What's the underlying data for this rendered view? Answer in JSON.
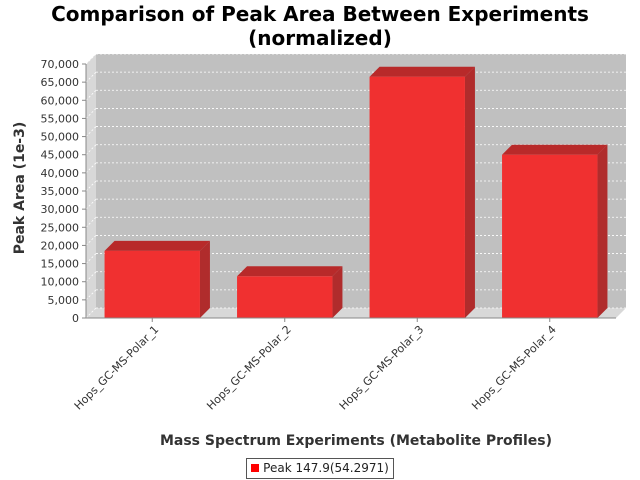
{
  "chart_data": {
    "type": "bar",
    "title_line1": "Comparison of Peak Area Between Experiments",
    "title_line2": "(normalized)",
    "xlabel": "Mass Spectrum Experiments (Metabolite Profiles)",
    "ylabel": "Peak Area (1e-3)",
    "categories": [
      "Hops_GC-MS-Polar_1",
      "Hops_GC-MS-Polar_2",
      "Hops_GC-MS-Polar_3",
      "Hops_GC-MS-Polar_4"
    ],
    "series": [
      {
        "name": "Peak 147.9(54.2971)",
        "values": [
          18500,
          11500,
          66500,
          45000
        ]
      }
    ],
    "yticks": [
      "0",
      "5,000",
      "10,000",
      "15,000",
      "20,000",
      "25,000",
      "30,000",
      "35,000",
      "40,000",
      "45,000",
      "50,000",
      "55,000",
      "60,000",
      "65,000",
      "70,000"
    ],
    "ylim": [
      0,
      70000
    ],
    "grid": true,
    "legend_position": "bottom",
    "colors": {
      "bar_front": "#f03030",
      "bar_top": "#b82a2a",
      "bar_side": "#b02c2c",
      "plot_bg": "#c0c0c0",
      "wall_side": "#d8d8d8",
      "legend_swatch": "#ff0000"
    }
  }
}
